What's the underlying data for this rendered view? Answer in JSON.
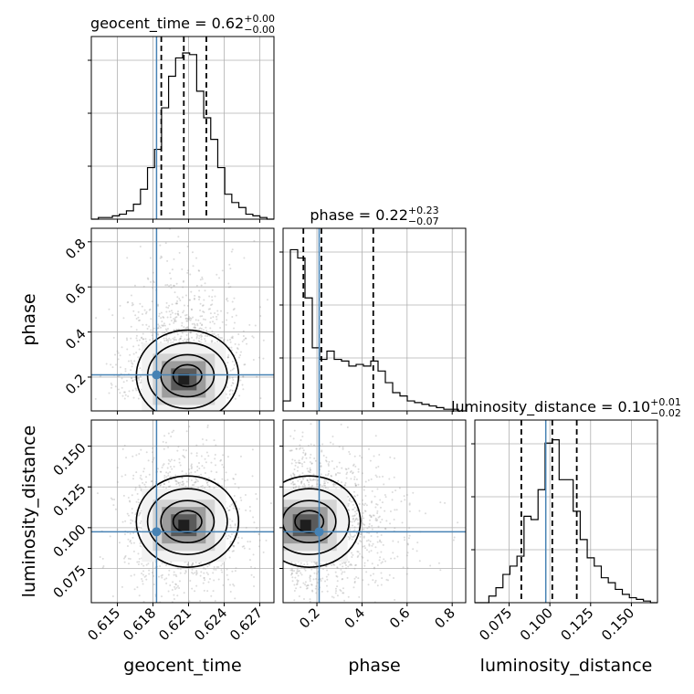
{
  "chart_data": {
    "type": "corner",
    "parameters": [
      {
        "name": "geocent_time",
        "range": [
          0.6128,
          0.6282
        ],
        "ticks": [
          0.615,
          0.618,
          0.621,
          0.624,
          0.627
        ],
        "tick_labels": [
          "0.615",
          "0.618",
          "0.621",
          "0.624",
          "0.627"
        ],
        "truth": 0.6183,
        "quantiles": [
          0.6187,
          0.6206,
          0.6225
        ],
        "title": {
          "main": "geocent_time = 0.62",
          "upper": "+0.00",
          "lower": "−0.00"
        },
        "axis_label": "geocent_time",
        "hist_max": 1.0,
        "hist": [
          0.0,
          0.01,
          0.01,
          0.02,
          0.03,
          0.05,
          0.09,
          0.18,
          0.31,
          0.42,
          0.67,
          0.86,
          0.97,
          1.0,
          0.99,
          0.77,
          0.61,
          0.48,
          0.31,
          0.15,
          0.1,
          0.07,
          0.03,
          0.02,
          0.01,
          0.0
        ]
      },
      {
        "name": "phase",
        "range": [
          0.05,
          0.86
        ],
        "ticks": [
          0.2,
          0.4,
          0.6,
          0.8
        ],
        "tick_labels": [
          "0.2",
          "0.4",
          "0.6",
          "0.8"
        ],
        "truth": 0.21,
        "quantiles": [
          0.14,
          0.22,
          0.45
        ],
        "title": {
          "main": "phase = 0.22",
          "upper": "+0.23",
          "lower": "−0.07"
        },
        "axis_label": "phase",
        "hist_max": 1.0,
        "hist": [
          0.06,
          0.97,
          0.92,
          0.68,
          0.38,
          0.31,
          0.36,
          0.31,
          0.3,
          0.27,
          0.28,
          0.27,
          0.3,
          0.24,
          0.17,
          0.11,
          0.09,
          0.06,
          0.05,
          0.04,
          0.03,
          0.02,
          0.01,
          0.01,
          0.0
        ]
      },
      {
        "name": "luminosity_distance",
        "range": [
          0.054,
          0.166
        ],
        "ticks": [
          0.075,
          0.1,
          0.125,
          0.15
        ],
        "tick_labels": [
          "0.075",
          "0.100",
          "0.125",
          "0.150"
        ],
        "truth": 0.0975,
        "quantiles": [
          0.0825,
          0.1015,
          0.1165
        ],
        "title": {
          "main": "luminosity_distance = 0.10",
          "upper": "+0.01",
          "lower": "−0.02"
        },
        "axis_label": "luminosity_distance",
        "hist_max": 1.0,
        "hist": [
          0.0,
          0.0,
          0.04,
          0.09,
          0.17,
          0.22,
          0.28,
          0.52,
          0.5,
          0.68,
          0.96,
          0.98,
          0.74,
          0.74,
          0.55,
          0.38,
          0.27,
          0.22,
          0.15,
          0.12,
          0.08,
          0.05,
          0.03,
          0.02,
          0.01,
          0.0
        ]
      }
    ],
    "y_tick_labels_2d": {
      "phase": [
        "0.2",
        "0.4",
        "0.6",
        "0.8"
      ],
      "luminosity_distance": [
        "0.075",
        "0.100",
        "0.125",
        "0.150"
      ]
    },
    "colors": {
      "truth": "#4682b4",
      "contour": "#000000",
      "grid": "#b0b0b0",
      "scatter": "#9a9a9a"
    },
    "grid": true
  }
}
